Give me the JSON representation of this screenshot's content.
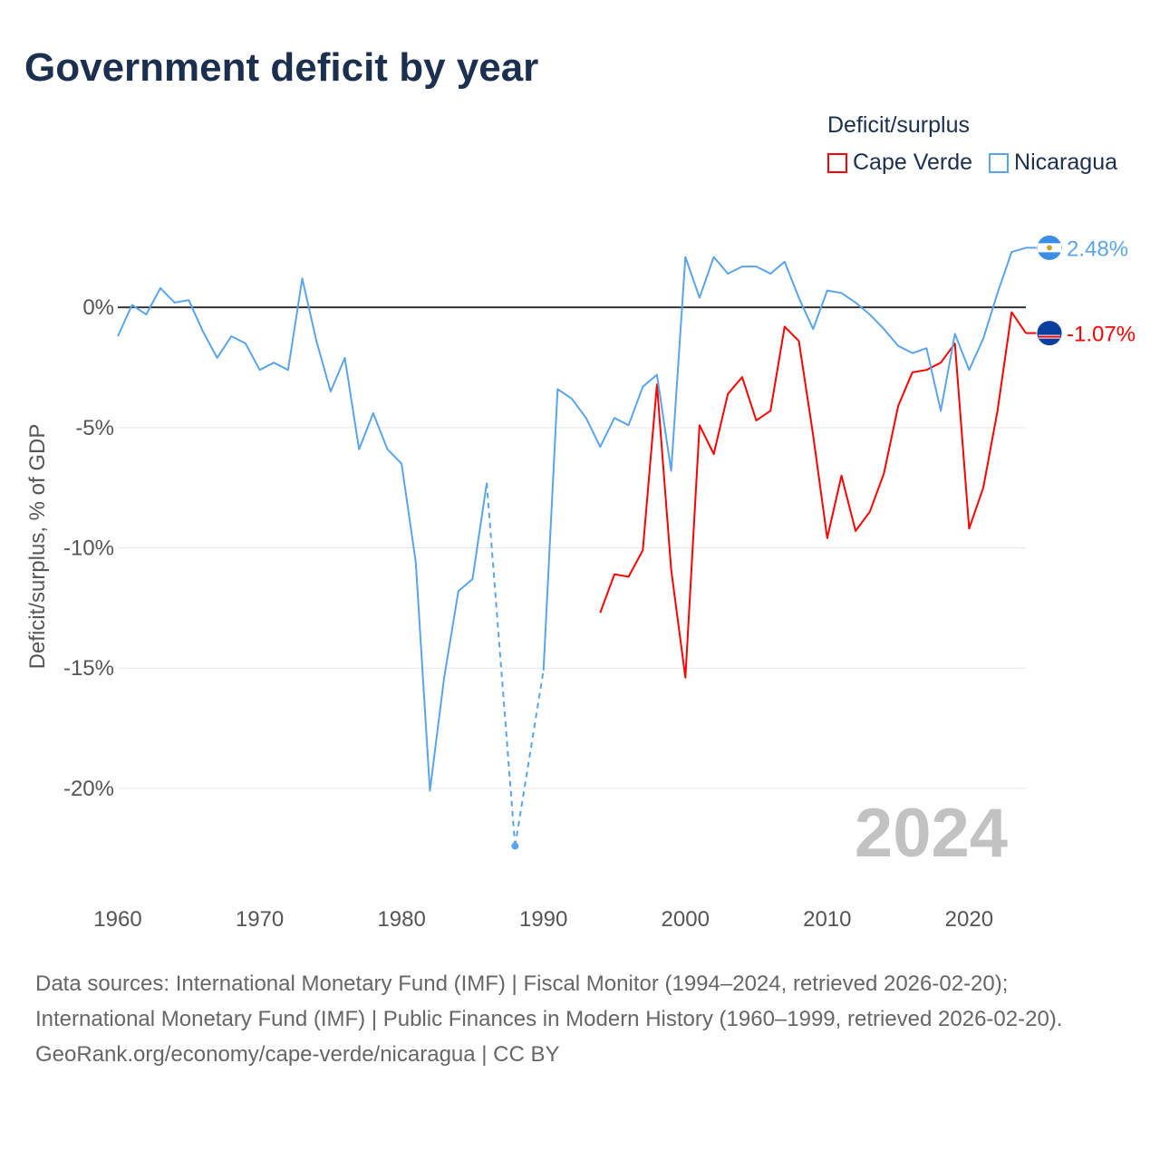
{
  "chart_data": {
    "type": "line",
    "title": "Government deficit by year",
    "ylabel": "Deficit/surplus, % of GDP",
    "xlabel": "",
    "legend_title": "Deficit/surplus",
    "legend_position": "top-right",
    "xlim": [
      1960,
      2024
    ],
    "ylim": [
      -24,
      3.7
    ],
    "x_ticks": [
      1960,
      1970,
      1980,
      1990,
      2000,
      2010,
      2020
    ],
    "x_tick_labels": [
      "1960",
      "1970",
      "1980",
      "1990",
      "2000",
      "2010",
      "2020"
    ],
    "y_ticks": [
      0,
      -5,
      -10,
      -15,
      -20
    ],
    "y_tick_labels": [
      "0%",
      "-5%",
      "-10%",
      "-15%",
      "-20%"
    ],
    "year_label": "2024",
    "series": [
      {
        "name": "Cape Verde",
        "color": "#ff0000",
        "end_label": "-1.07%",
        "start_year": 1994,
        "values": [
          -12.7,
          -11.1,
          -11.2,
          -10.1,
          -3.2,
          -10.9,
          -15.4,
          -4.9,
          -6.1,
          -3.6,
          -2.9,
          -4.7,
          -4.3,
          -0.8,
          -1.4,
          -5.3,
          -9.6,
          -7.0,
          -9.3,
          -8.5,
          -6.9,
          -4.1,
          -2.7,
          -2.6,
          -2.3,
          -1.5,
          -9.2,
          -7.5,
          -4.3,
          -0.2,
          -1.07
        ]
      },
      {
        "name": "Nicaragua",
        "color": "#5aa5ea",
        "end_label": "2.48%",
        "start_year": 1960,
        "values": [
          -1.2,
          0.1,
          -0.3,
          0.8,
          0.2,
          0.3,
          -1.0,
          -2.1,
          -1.2,
          -1.5,
          -2.6,
          -2.3,
          -2.6,
          1.2,
          -1.4,
          -3.5,
          -2.1,
          -5.9,
          -4.4,
          -5.9,
          -6.5,
          -10.6,
          -20.1,
          -15.4,
          -11.8,
          -11.3,
          -7.3,
          null,
          -22.4,
          null,
          -15.1,
          -3.4,
          -3.8,
          -4.6,
          -5.8,
          -4.6,
          -4.9,
          -3.3,
          -2.8,
          -6.8,
          2.1,
          0.4,
          2.1,
          1.4,
          1.7,
          1.7,
          1.4,
          1.9,
          0.4,
          -0.9,
          0.7,
          0.6,
          0.2,
          -0.3,
          -0.9,
          -1.6,
          -1.9,
          -1.7,
          -4.3,
          -1.1,
          -2.6,
          -1.3,
          0.6,
          2.3,
          2.48
        ]
      }
    ]
  },
  "footer": {
    "sources": "Data sources: International Monetary Fund (IMF) | Fiscal Monitor (1994–2024, retrieved 2026-02-20); International Monetary Fund (IMF) | Public Finances in Modern History (1960–1999, retrieved 2026-02-20).",
    "credit": "GeoRank.org/economy/cape-verde/nicaragua | CC BY"
  }
}
